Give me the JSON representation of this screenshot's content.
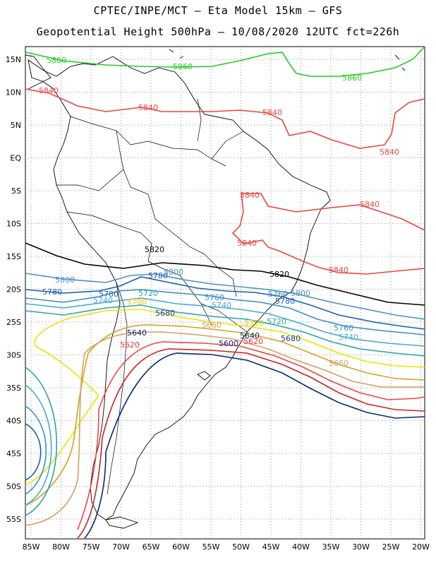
{
  "title_line1": "CPTEC/INPE/MCT –  Eta Model 15km – GFS",
  "title_line2": "Geopotential Height 500hPa – 10/08/2020 12UTC fct=226h",
  "lat_labels": [
    "15N",
    "10N",
    "5N",
    "EQ",
    "5S",
    "10S",
    "15S",
    "20S",
    "25S",
    "30S",
    "35S",
    "40S",
    "45S",
    "50S",
    "55S"
  ],
  "lon_labels": [
    "85W",
    "80W",
    "75W",
    "70W",
    "65W",
    "60W",
    "55W",
    "50W",
    "45W",
    "40W",
    "35W",
    "30W",
    "25W",
    "20W"
  ],
  "contour_colors": {
    "5860": "#22cc22",
    "5840": "#ee4444",
    "5820": "#000000",
    "5800": "#4a90c0",
    "5780": "#1a5fb4",
    "5760": "#3a8fc8",
    "5740": "#44aacc",
    "5720": "#2aa5a5",
    "5700": "#e6e600",
    "5680": "#d4a020",
    "5660": "#d4a060",
    "5640": "#ee4444",
    "5620": "#ee3333",
    "5600": "#0a2a6a"
  },
  "contour_labels": {
    "l5860a": "5860",
    "l5860b": "5860",
    "l5860c": "5860",
    "l5840a": "5840",
    "l5840b": "5840",
    "l5840c": "5840",
    "l5840d": "5840",
    "l5840e": "5840",
    "l5840f": "5840",
    "l5840g": "5840",
    "l5840h": "5840",
    "l5820a": "5820",
    "l5820b": "5820",
    "l5800a": "5800",
    "l5800b": "5800",
    "l5800c": "5800",
    "l5780a": "5780",
    "l5780b": "5780",
    "l5780c": "5780",
    "l5780d": "5780",
    "l5760a": "5760",
    "l5760b": "5760",
    "l5760c": "5760",
    "l5740a": "5740",
    "l5740b": "5740",
    "l5740c": "5740",
    "l5720a": "5720",
    "l5720b": "5720",
    "l5700a": "5700",
    "l5700b": "5700",
    "l5680a": "5680",
    "l5680b": "5680",
    "l5660a": "5660",
    "l5660b": "5660",
    "l5640a": "5640",
    "l5640b": "5640",
    "l5620a": "5620",
    "l5620b": "5620",
    "l5600a": "5600"
  }
}
